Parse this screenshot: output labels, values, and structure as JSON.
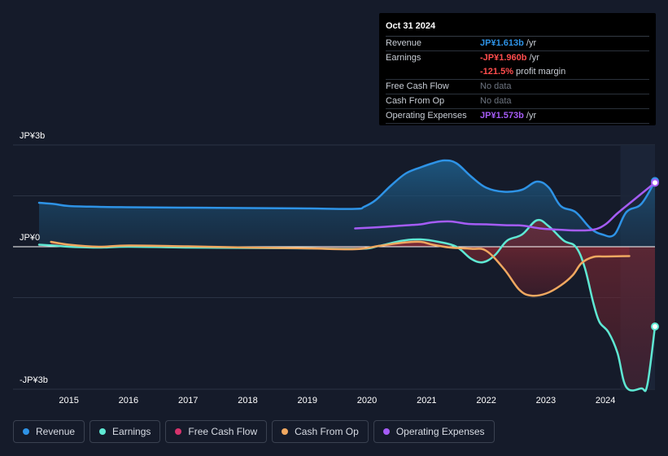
{
  "tooltip": {
    "date": "Oct 31 2024",
    "rows": {
      "revenue": {
        "label": "Revenue",
        "value": "JP¥1.613b",
        "unit": "/yr"
      },
      "earnings": {
        "label": "Earnings",
        "value": "-JP¥1.960b",
        "unit": "/yr"
      },
      "margin": {
        "value": "-121.5%",
        "text": "profit margin"
      },
      "fcf": {
        "label": "Free Cash Flow",
        "value": "No data"
      },
      "cfo": {
        "label": "Cash From Op",
        "value": "No data"
      },
      "opex": {
        "label": "Operating Expenses",
        "value": "JP¥1.573b",
        "unit": "/yr"
      }
    }
  },
  "legend": {
    "items": [
      {
        "label": "Revenue",
        "color": "#2e93e6"
      },
      {
        "label": "Earnings",
        "color": "#5ee8d3"
      },
      {
        "label": "Free Cash Flow",
        "color": "#d6336c"
      },
      {
        "label": "Cash From Op",
        "color": "#f0a860"
      },
      {
        "label": "Operating Expenses",
        "color": "#a55cf5"
      }
    ]
  },
  "chart_data": {
    "type": "line",
    "y_unit": "JP¥ billions",
    "ylim": [
      -3.5,
      2.5
    ],
    "xlim": [
      2014.5,
      2024.83
    ],
    "y_ticks": [
      {
        "value": 2.5,
        "label": "JP¥3b"
      },
      {
        "value": 0,
        "label": "JP¥0"
      },
      {
        "value": -3.5,
        "label": "-JP¥3b"
      }
    ],
    "x_ticks": [
      "2015",
      "2016",
      "2017",
      "2018",
      "2019",
      "2020",
      "2021",
      "2022",
      "2023",
      "2024"
    ],
    "highlight_start": 2024.25,
    "series": [
      {
        "name": "Revenue",
        "color": "#2e93e6",
        "fill": true,
        "points": [
          [
            2014.5,
            1.08
          ],
          [
            2014.75,
            1.05
          ],
          [
            2015.0,
            1.0
          ],
          [
            2015.5,
            0.98
          ],
          [
            2016.0,
            0.97
          ],
          [
            2017.0,
            0.96
          ],
          [
            2018.0,
            0.95
          ],
          [
            2019.0,
            0.94
          ],
          [
            2019.8,
            0.93
          ],
          [
            2019.95,
            0.98
          ],
          [
            2020.15,
            1.15
          ],
          [
            2020.4,
            1.5
          ],
          [
            2020.65,
            1.8
          ],
          [
            2020.9,
            1.95
          ],
          [
            2021.1,
            2.05
          ],
          [
            2021.3,
            2.12
          ],
          [
            2021.5,
            2.05
          ],
          [
            2021.75,
            1.72
          ],
          [
            2022.0,
            1.45
          ],
          [
            2022.3,
            1.35
          ],
          [
            2022.6,
            1.4
          ],
          [
            2022.85,
            1.6
          ],
          [
            2023.05,
            1.45
          ],
          [
            2023.25,
            1.0
          ],
          [
            2023.5,
            0.85
          ],
          [
            2023.75,
            0.45
          ],
          [
            2023.95,
            0.3
          ],
          [
            2024.15,
            0.3
          ],
          [
            2024.35,
            0.85
          ],
          [
            2024.6,
            1.05
          ],
          [
            2024.83,
            1.613
          ]
        ]
      },
      {
        "name": "Earnings",
        "color": "#5ee8d3",
        "fill": true,
        "points": [
          [
            2014.5,
            0.05
          ],
          [
            2014.75,
            0.03
          ],
          [
            2015.0,
            0.0
          ],
          [
            2015.5,
            -0.02
          ],
          [
            2016.0,
            0.0
          ],
          [
            2017.0,
            -0.02
          ],
          [
            2018.0,
            -0.03
          ],
          [
            2019.0,
            -0.04
          ],
          [
            2019.9,
            -0.05
          ],
          [
            2020.2,
            0.02
          ],
          [
            2020.6,
            0.15
          ],
          [
            2020.9,
            0.18
          ],
          [
            2021.2,
            0.12
          ],
          [
            2021.5,
            0.0
          ],
          [
            2021.75,
            -0.3
          ],
          [
            2021.95,
            -0.38
          ],
          [
            2022.15,
            -0.2
          ],
          [
            2022.35,
            0.15
          ],
          [
            2022.6,
            0.3
          ],
          [
            2022.85,
            0.65
          ],
          [
            2023.05,
            0.5
          ],
          [
            2023.3,
            0.15
          ],
          [
            2023.5,
            0.0
          ],
          [
            2023.65,
            -0.5
          ],
          [
            2023.8,
            -1.4
          ],
          [
            2023.9,
            -1.85
          ],
          [
            2024.05,
            -2.1
          ],
          [
            2024.2,
            -2.6
          ],
          [
            2024.35,
            -3.45
          ],
          [
            2024.6,
            -3.48
          ],
          [
            2024.7,
            -3.4
          ],
          [
            2024.83,
            -1.96
          ]
        ]
      },
      {
        "name": "Cash From Op",
        "color": "#f0a860",
        "fill": true,
        "points": [
          [
            2014.7,
            0.12
          ],
          [
            2015.0,
            0.05
          ],
          [
            2015.5,
            0.0
          ],
          [
            2016.0,
            0.03
          ],
          [
            2017.0,
            0.01
          ],
          [
            2018.0,
            -0.02
          ],
          [
            2019.0,
            -0.04
          ],
          [
            2019.8,
            -0.06
          ],
          [
            2020.2,
            0.02
          ],
          [
            2020.6,
            0.1
          ],
          [
            2020.9,
            0.12
          ],
          [
            2021.1,
            0.05
          ],
          [
            2021.4,
            -0.02
          ],
          [
            2021.75,
            -0.05
          ],
          [
            2022.0,
            -0.1
          ],
          [
            2022.3,
            -0.55
          ],
          [
            2022.55,
            -1.05
          ],
          [
            2022.75,
            -1.2
          ],
          [
            2023.0,
            -1.15
          ],
          [
            2023.25,
            -0.95
          ],
          [
            2023.45,
            -0.7
          ],
          [
            2023.6,
            -0.4
          ],
          [
            2023.8,
            -0.25
          ],
          [
            2024.0,
            -0.24
          ],
          [
            2024.4,
            -0.23
          ]
        ]
      },
      {
        "name": "Operating Expenses",
        "color": "#a55cf5",
        "fill": true,
        "points": [
          [
            2019.8,
            0.45
          ],
          [
            2020.2,
            0.48
          ],
          [
            2020.6,
            0.52
          ],
          [
            2020.9,
            0.55
          ],
          [
            2021.1,
            0.6
          ],
          [
            2021.4,
            0.62
          ],
          [
            2021.7,
            0.56
          ],
          [
            2022.0,
            0.55
          ],
          [
            2022.3,
            0.53
          ],
          [
            2022.6,
            0.52
          ],
          [
            2022.9,
            0.45
          ],
          [
            2023.2,
            0.42
          ],
          [
            2023.5,
            0.4
          ],
          [
            2023.8,
            0.42
          ],
          [
            2024.0,
            0.55
          ],
          [
            2024.2,
            0.82
          ],
          [
            2024.5,
            1.18
          ],
          [
            2024.83,
            1.573
          ]
        ]
      }
    ]
  }
}
